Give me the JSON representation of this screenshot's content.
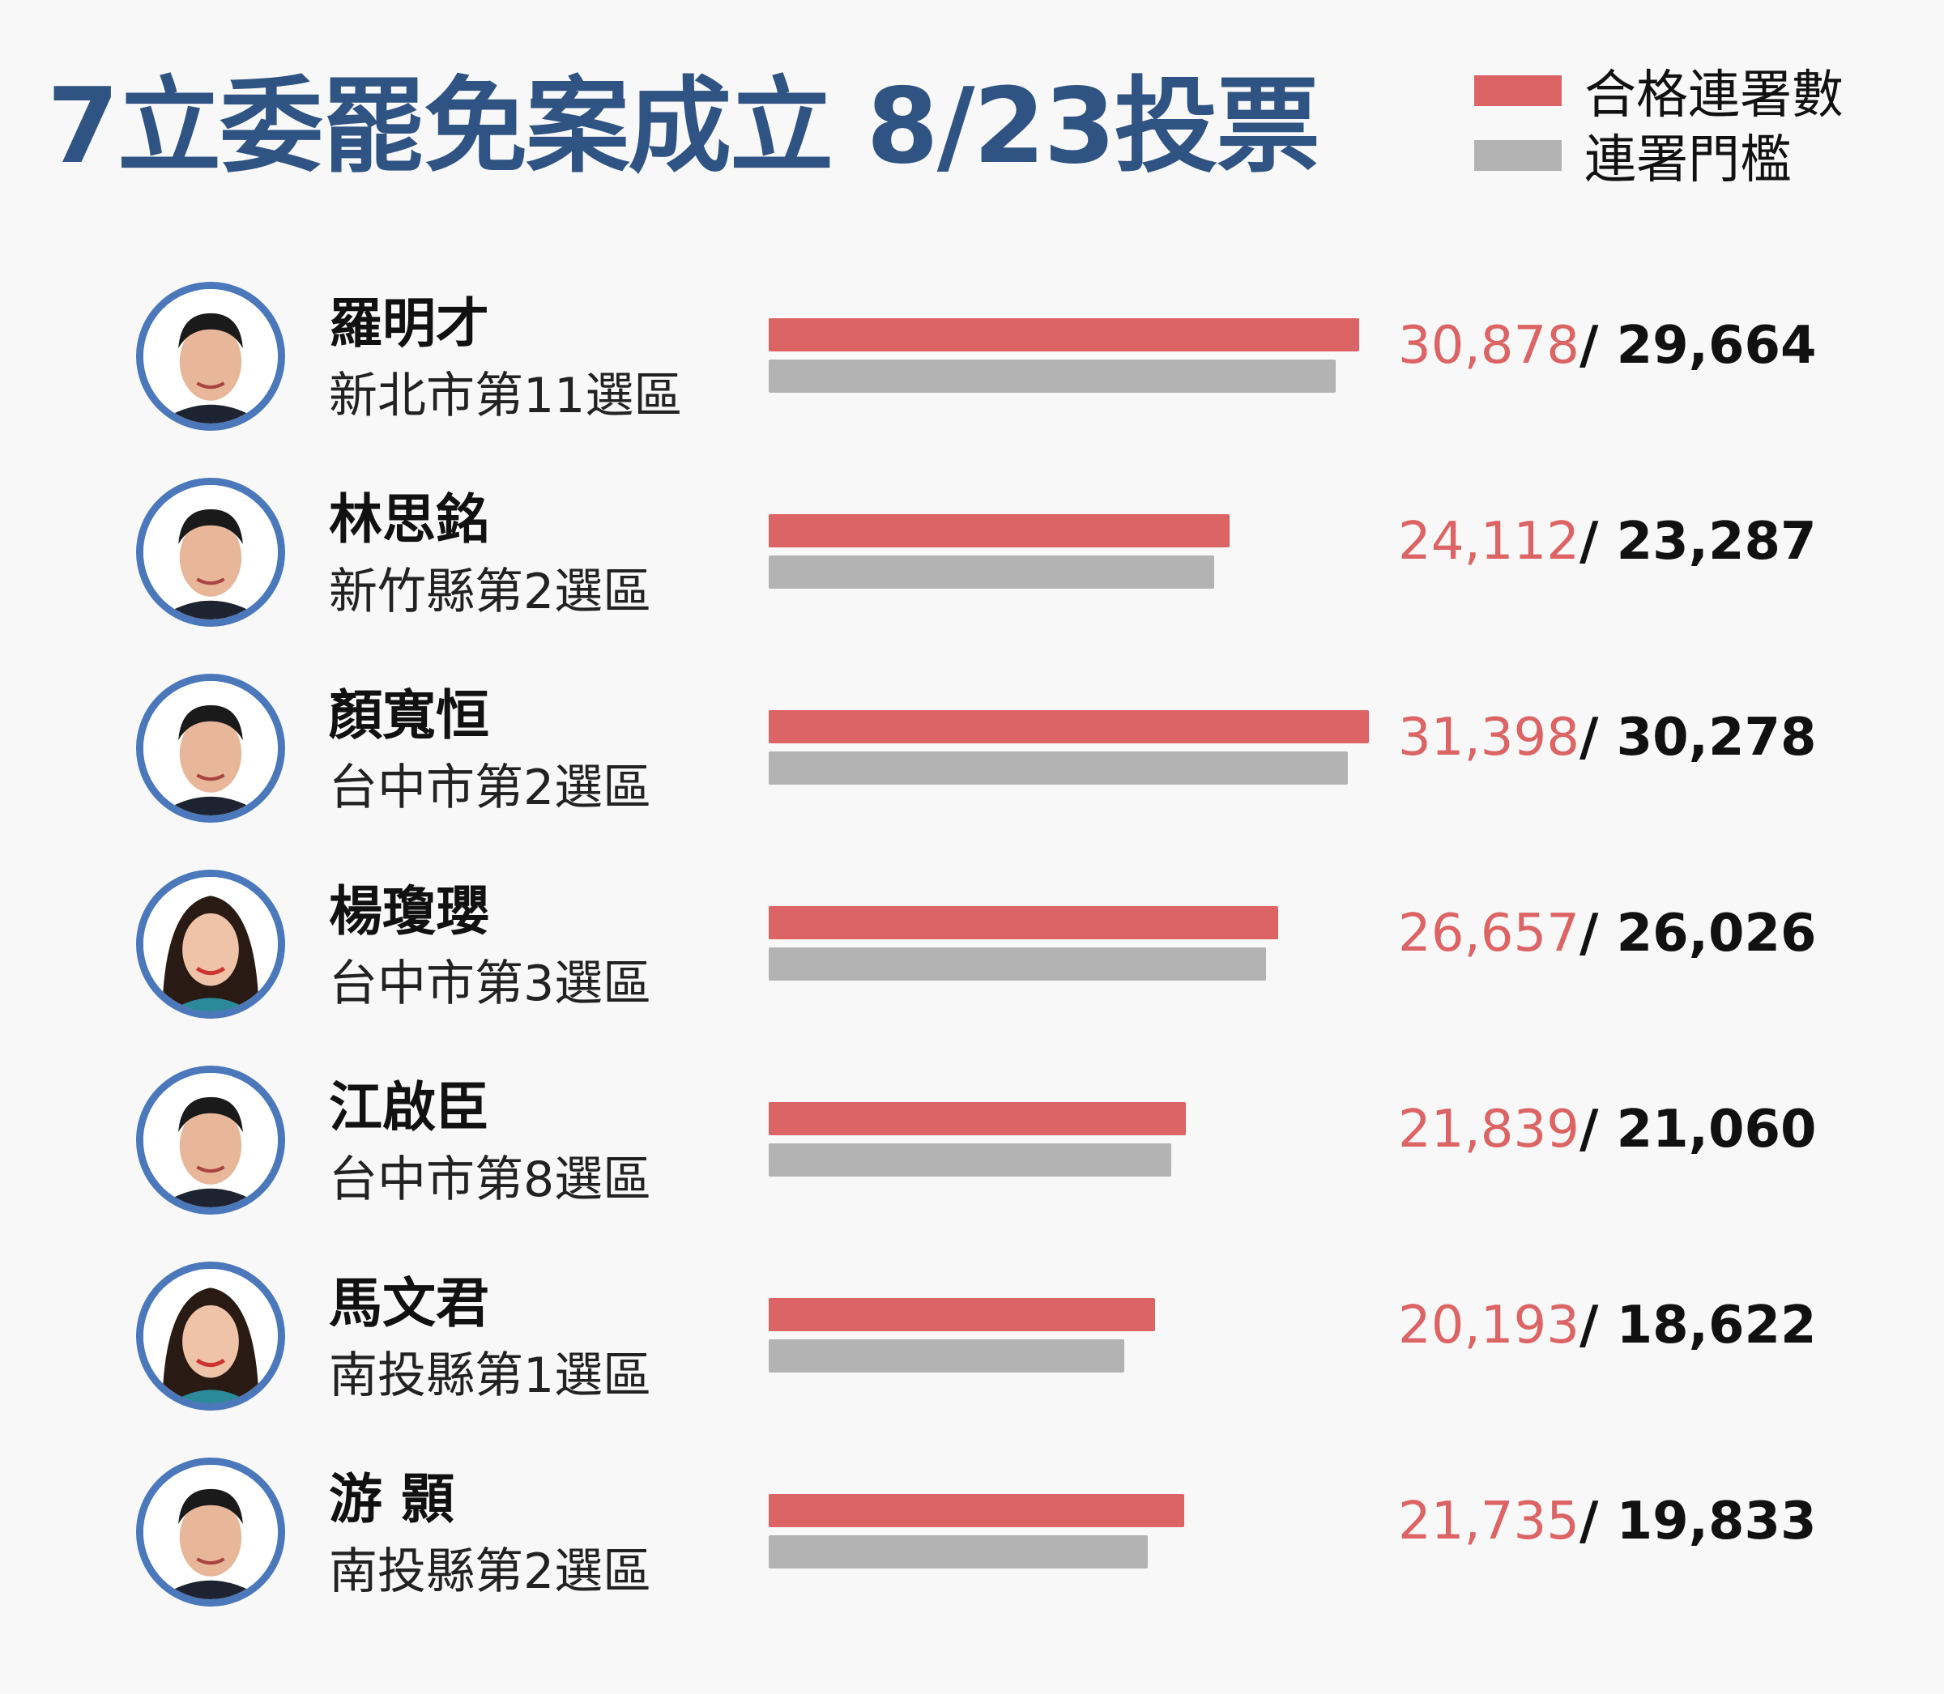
{
  "title": "7立委罷免案成立 8/23投票",
  "colors": {
    "title": "#2f5483",
    "signatures": "#dc6464",
    "threshold": "#b3b3b3",
    "avatar_ring": "#4a78bb"
  },
  "legend": [
    {
      "label": "合格連署數",
      "color": "#dc6464"
    },
    {
      "label": "連署門檻",
      "color": "#b3b3b3"
    }
  ],
  "chart_data": {
    "type": "bar",
    "orientation": "horizontal",
    "title": "7立委罷免案成立 8/23投票",
    "categories": [
      "羅明才",
      "林思銘",
      "顏寬恒",
      "楊瓊瓔",
      "江啟臣",
      "馬文君",
      "游 顥"
    ],
    "districts": [
      "新北市第11選區",
      "新竹縣第2選區",
      "台中市第2選區",
      "台中市第3選區",
      "台中市第8選區",
      "南投縣第1選區",
      "南投縣第2選區"
    ],
    "series": [
      {
        "name": "合格連署數",
        "values": [
          30878,
          24112,
          31398,
          26657,
          21839,
          20193,
          21735
        ],
        "labels": [
          "30,878",
          "24,112",
          "31,398",
          "26,657",
          "21,839",
          "20,193",
          "21,735"
        ]
      },
      {
        "name": "連署門檻",
        "values": [
          29664,
          23287,
          30278,
          26026,
          21060,
          18622,
          19833
        ],
        "labels": [
          "29,664",
          "23,287",
          "30,278",
          "26,026",
          "21,060",
          "18,622",
          "19,833"
        ]
      }
    ],
    "xlim": [
      0,
      31398
    ],
    "grid": false,
    "legend_position": "top-right",
    "avatars": [
      "male",
      "male",
      "male",
      "female",
      "male",
      "female",
      "male"
    ]
  }
}
